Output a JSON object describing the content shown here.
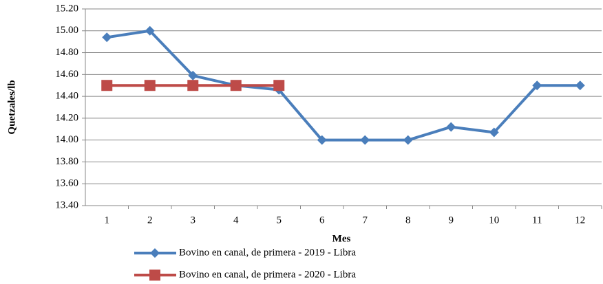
{
  "chart_data": {
    "type": "line",
    "x_label": "Mes",
    "y_label": "Quetzales/lb",
    "categories": [
      "1",
      "2",
      "3",
      "4",
      "5",
      "6",
      "7",
      "8",
      "9",
      "10",
      "11",
      "12"
    ],
    "series": [
      {
        "name": "Bovino en canal, de primera - 2019 - Libra",
        "color": "#4a7ebb",
        "marker": "diamond",
        "values": [
          14.94,
          15.0,
          14.59,
          14.5,
          14.46,
          14.0,
          14.0,
          14.0,
          14.12,
          14.07,
          14.5,
          14.5
        ]
      },
      {
        "name": "Bovino en canal, de primera - 2020 - Libra",
        "color": "#be4b48",
        "marker": "square",
        "values": [
          14.5,
          14.5,
          14.5,
          14.5,
          14.5,
          null,
          null,
          null,
          null,
          null,
          null,
          null
        ]
      }
    ],
    "ylim": [
      13.4,
      15.2
    ],
    "yticks": [
      {
        "value": 13.4,
        "label": "13.40"
      },
      {
        "value": 13.6,
        "label": "13.60"
      },
      {
        "value": 13.8,
        "label": "13.80"
      },
      {
        "value": 14.0,
        "label": "14.00"
      },
      {
        "value": 14.2,
        "label": "14.20"
      },
      {
        "value": 14.4,
        "label": "14.40"
      },
      {
        "value": 14.6,
        "label": "14.60"
      },
      {
        "value": 14.8,
        "label": "14.80"
      },
      {
        "value": 15.0,
        "label": "15.00"
      },
      {
        "value": 15.2,
        "label": "15.20"
      }
    ],
    "grid": true,
    "legend": "bottom"
  }
}
